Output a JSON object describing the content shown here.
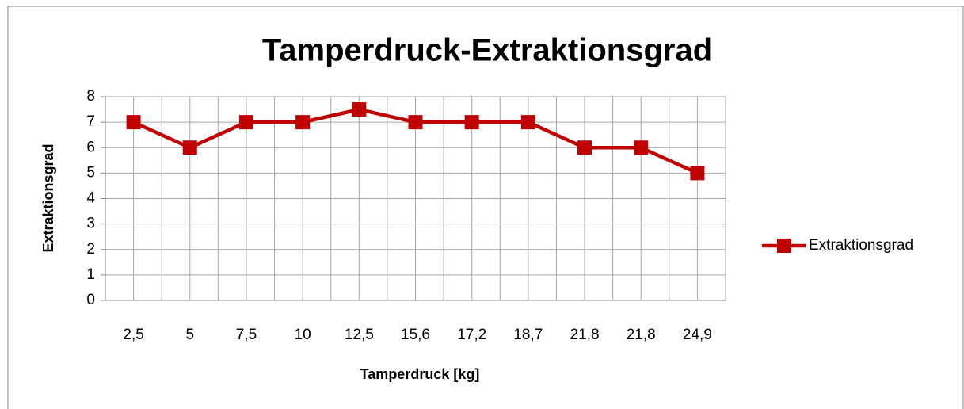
{
  "chart_data": {
    "type": "line",
    "title": "Tamperdruck-Extraktionsgrad",
    "x_label": "Tamperdruck [kg]",
    "y_label": "Extraktionsgrad",
    "categories": [
      "2,5",
      "5",
      "7,5",
      "10",
      "12,5",
      "15,6",
      "17,2",
      "18,7",
      "21,8",
      "21,8",
      "24,9"
    ],
    "series": [
      {
        "name": "Extraktionsgrad",
        "color": "#c00000",
        "values": [
          7,
          6,
          7,
          7,
          7.5,
          7,
          7,
          7,
          6,
          6,
          5
        ]
      }
    ],
    "ylim": [
      0,
      8
    ],
    "yticks": [
      0,
      1,
      2,
      3,
      4,
      5,
      6,
      7,
      8
    ],
    "grid": true,
    "legend": "right"
  }
}
